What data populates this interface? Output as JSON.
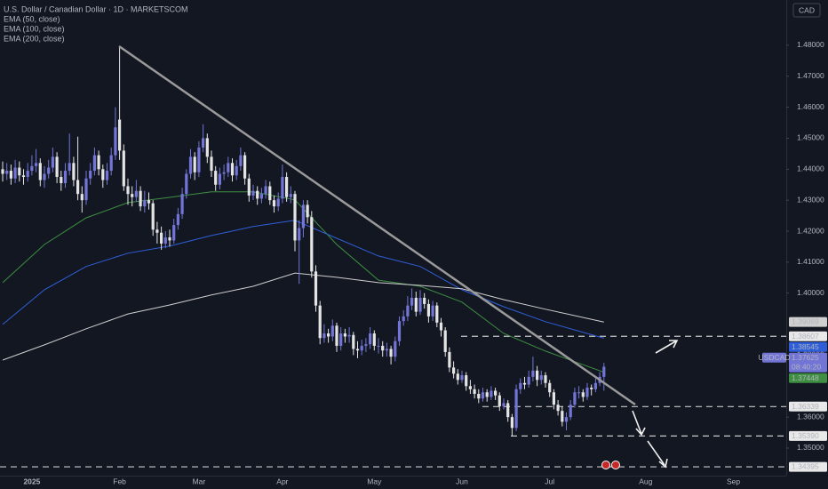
{
  "chart_data": {
    "type": "candlestick",
    "title": "U.S. Dollar / Canadian Dollar · 1D · MARKETSCOM",
    "currency": "CAD",
    "symbol": "USDCAD",
    "countdown": "08:40:20",
    "up_color": "#7275d6",
    "down_color": "#e4e4e4",
    "categories": [
      null,
      null,
      null,
      null,
      null,
      null,
      null,
      "2025",
      null,
      null,
      null,
      null,
      null,
      null,
      null,
      null,
      null,
      null,
      null,
      null,
      null,
      null,
      null,
      null,
      null,
      null,
      null,
      null,
      "Feb",
      null,
      null,
      null,
      null,
      null,
      null,
      null,
      null,
      null,
      null,
      null,
      null,
      null,
      null,
      null,
      null,
      null,
      null,
      "Mar",
      null,
      null,
      null,
      null,
      null,
      null,
      null,
      null,
      null,
      null,
      null,
      null,
      null,
      null,
      null,
      null,
      null,
      null,
      null,
      "Apr",
      null,
      null,
      null,
      null,
      null,
      null,
      null,
      null,
      null,
      null,
      null,
      null,
      null,
      null,
      null,
      null,
      null,
      null,
      null,
      null,
      null,
      "May",
      null,
      null,
      null,
      null,
      null,
      null,
      null,
      null,
      null,
      null,
      null,
      null,
      null,
      null,
      null,
      null,
      null,
      null,
      null,
      null,
      "Jun",
      null,
      null,
      null,
      null,
      null,
      null,
      null,
      null,
      null,
      null,
      null,
      null,
      null,
      null,
      null,
      null,
      null,
      null,
      null,
      null,
      "Jul",
      null,
      null,
      null,
      null,
      null,
      null,
      null,
      null,
      null,
      null,
      null,
      null,
      null,
      null,
      null,
      null,
      null,
      null,
      null,
      null,
      null,
      null,
      "Aug",
      null,
      null,
      null,
      null,
      null,
      null,
      null,
      null,
      null,
      null,
      null,
      null,
      null,
      null,
      null,
      null,
      null,
      null,
      null,
      null,
      "Sep"
    ],
    "ohlc": [
      [
        1.44,
        1.4425,
        1.436,
        1.4385
      ],
      [
        1.4385,
        1.442,
        1.4365,
        1.4395
      ],
      [
        1.4395,
        1.4415,
        1.435,
        1.437
      ],
      [
        1.437,
        1.443,
        1.4355,
        1.4405
      ],
      [
        1.4405,
        1.4425,
        1.436,
        1.438
      ],
      [
        1.438,
        1.44,
        1.435,
        1.4375
      ],
      [
        1.4375,
        1.442,
        1.436,
        1.4395
      ],
      [
        1.4395,
        1.4445,
        1.438,
        1.441
      ],
      [
        1.441,
        1.4465,
        1.439,
        1.442
      ],
      [
        1.442,
        1.4435,
        1.4345,
        1.4365
      ],
      [
        1.4365,
        1.441,
        1.434,
        1.4385
      ],
      [
        1.4385,
        1.443,
        1.437,
        1.4405
      ],
      [
        1.4405,
        1.447,
        1.439,
        1.444
      ],
      [
        1.444,
        1.4455,
        1.4355,
        1.4375
      ],
      [
        1.4375,
        1.4395,
        1.433,
        1.4355
      ],
      [
        1.4355,
        1.442,
        1.434,
        1.4395
      ],
      [
        1.4395,
        1.4515,
        1.438,
        1.442
      ],
      [
        1.442,
        1.444,
        1.4345,
        1.4365
      ],
      [
        1.4365,
        1.4505,
        1.43,
        1.432
      ],
      [
        1.432,
        1.4345,
        1.426,
        1.43
      ],
      [
        1.43,
        1.4395,
        1.4285,
        1.437
      ],
      [
        1.437,
        1.442,
        1.435,
        1.4395
      ],
      [
        1.4395,
        1.447,
        1.438,
        1.4445
      ],
      [
        1.4445,
        1.446,
        1.438,
        1.44
      ],
      [
        1.44,
        1.4415,
        1.434,
        1.4365
      ],
      [
        1.4365,
        1.442,
        1.435,
        1.4395
      ],
      [
        1.4395,
        1.447,
        1.438,
        1.4445
      ],
      [
        1.4445,
        1.46,
        1.443,
        1.4535
      ],
      [
        1.456,
        1.4793,
        1.443,
        1.446
      ],
      [
        1.446,
        1.448,
        1.433,
        1.4345
      ],
      [
        1.4345,
        1.437,
        1.4285,
        1.432
      ],
      [
        1.432,
        1.4345,
        1.428,
        1.431
      ],
      [
        1.431,
        1.4365,
        1.4295,
        1.433
      ],
      [
        1.433,
        1.4345,
        1.4265,
        1.428
      ],
      [
        1.428,
        1.433,
        1.426,
        1.43
      ],
      [
        1.43,
        1.4325,
        1.427,
        1.429
      ],
      [
        1.429,
        1.43,
        1.4185,
        1.4205
      ],
      [
        1.4205,
        1.423,
        1.416,
        1.4195
      ],
      [
        1.4195,
        1.4215,
        1.414,
        1.416
      ],
      [
        1.416,
        1.42,
        1.4145,
        1.418
      ],
      [
        1.418,
        1.4205,
        1.415,
        1.417
      ],
      [
        1.417,
        1.424,
        1.416,
        1.422
      ],
      [
        1.422,
        1.4275,
        1.4205,
        1.4255
      ],
      [
        1.4255,
        1.434,
        1.424,
        1.432
      ],
      [
        1.432,
        1.44,
        1.4305,
        1.4385
      ],
      [
        1.4385,
        1.4465,
        1.437,
        1.444
      ],
      [
        1.444,
        1.4455,
        1.4365,
        1.439
      ],
      [
        1.439,
        1.449,
        1.4375,
        1.447
      ],
      [
        1.447,
        1.4545,
        1.4455,
        1.45
      ],
      [
        1.45,
        1.4515,
        1.442,
        1.444
      ],
      [
        1.444,
        1.446,
        1.4375,
        1.4395
      ],
      [
        1.4395,
        1.441,
        1.433,
        1.435
      ],
      [
        1.435,
        1.4405,
        1.4335,
        1.4385
      ],
      [
        1.4385,
        1.4415,
        1.4365,
        1.439
      ],
      [
        1.439,
        1.444,
        1.4375,
        1.442
      ],
      [
        1.442,
        1.4435,
        1.436,
        1.438
      ],
      [
        1.438,
        1.443,
        1.4365,
        1.441
      ],
      [
        1.441,
        1.447,
        1.4395,
        1.4445
      ],
      [
        1.4445,
        1.4455,
        1.435,
        1.437
      ],
      [
        1.437,
        1.4385,
        1.4295,
        1.4315
      ],
      [
        1.4315,
        1.435,
        1.43,
        1.433
      ],
      [
        1.433,
        1.4345,
        1.4285,
        1.4305
      ],
      [
        1.4305,
        1.434,
        1.429,
        1.432
      ],
      [
        1.432,
        1.4365,
        1.4305,
        1.4345
      ],
      [
        1.4345,
        1.436,
        1.4285,
        1.43
      ],
      [
        1.43,
        1.4315,
        1.426,
        1.428
      ],
      [
        1.428,
        1.4325,
        1.4265,
        1.4305
      ],
      [
        1.4305,
        1.4415,
        1.429,
        1.4375
      ],
      [
        1.4375,
        1.439,
        1.4295,
        1.431
      ],
      [
        1.431,
        1.4345,
        1.429,
        1.432
      ],
      [
        1.432,
        1.433,
        1.4135,
        1.417
      ],
      [
        1.417,
        1.4235,
        1.403,
        1.421
      ],
      [
        1.421,
        1.43,
        1.418,
        1.4285
      ],
      [
        1.4285,
        1.43,
        1.4225,
        1.4245
      ],
      [
        1.4245,
        1.4265,
        1.405,
        1.407
      ],
      [
        1.407,
        1.409,
        1.394,
        1.396
      ],
      [
        1.396,
        1.3975,
        1.3835,
        1.3855
      ],
      [
        1.3855,
        1.39,
        1.384,
        1.387
      ],
      [
        1.387,
        1.3885,
        1.384,
        1.386
      ],
      [
        1.386,
        1.3915,
        1.3845,
        1.3895
      ],
      [
        1.3895,
        1.3905,
        1.381,
        1.383
      ],
      [
        1.383,
        1.389,
        1.3815,
        1.387
      ],
      [
        1.387,
        1.3885,
        1.384,
        1.386
      ],
      [
        1.386,
        1.389,
        1.384,
        1.3865
      ],
      [
        1.3865,
        1.3875,
        1.38,
        1.382
      ],
      [
        1.382,
        1.3845,
        1.379,
        1.3815
      ],
      [
        1.3815,
        1.385,
        1.38,
        1.383
      ],
      [
        1.383,
        1.3855,
        1.381,
        1.3835
      ],
      [
        1.3835,
        1.389,
        1.382,
        1.387
      ],
      [
        1.387,
        1.388,
        1.3815,
        1.383
      ],
      [
        1.383,
        1.3855,
        1.3805,
        1.383
      ],
      [
        1.383,
        1.3845,
        1.3795,
        1.3815
      ],
      [
        1.3815,
        1.384,
        1.3795,
        1.382
      ],
      [
        1.382,
        1.383,
        1.377,
        1.3795
      ],
      [
        1.3795,
        1.386,
        1.378,
        1.3845
      ],
      [
        1.3845,
        1.3925,
        1.383,
        1.391
      ],
      [
        1.391,
        1.3945,
        1.3895,
        1.3925
      ],
      [
        1.3925,
        1.399,
        1.391,
        1.396
      ],
      [
        1.396,
        1.4015,
        1.3945,
        1.3985
      ],
      [
        1.3985,
        1.4005,
        1.3925,
        1.394
      ],
      [
        1.394,
        1.401,
        1.393,
        1.3985
      ],
      [
        1.3985,
        1.4,
        1.395,
        1.3965
      ],
      [
        1.3965,
        1.398,
        1.3905,
        1.3925
      ],
      [
        1.3925,
        1.3975,
        1.391,
        1.396
      ],
      [
        1.396,
        1.397,
        1.389,
        1.3905
      ],
      [
        1.3905,
        1.392,
        1.386,
        1.388
      ],
      [
        1.388,
        1.389,
        1.3795,
        1.381
      ],
      [
        1.381,
        1.3825,
        1.3745,
        1.376
      ],
      [
        1.376,
        1.378,
        1.3725,
        1.374
      ],
      [
        1.374,
        1.3755,
        1.3705,
        1.372
      ],
      [
        1.372,
        1.375,
        1.371,
        1.3735
      ],
      [
        1.3735,
        1.3745,
        1.3685,
        1.37
      ],
      [
        1.37,
        1.372,
        1.3675,
        1.369
      ],
      [
        1.369,
        1.3705,
        1.366,
        1.3675
      ],
      [
        1.3675,
        1.369,
        1.3645,
        1.366
      ],
      [
        1.366,
        1.3695,
        1.365,
        1.368
      ],
      [
        1.368,
        1.369,
        1.365,
        1.3665
      ],
      [
        1.3665,
        1.37,
        1.3655,
        1.3685
      ],
      [
        1.3685,
        1.3695,
        1.3655,
        1.367
      ],
      [
        1.367,
        1.368,
        1.362,
        1.3635
      ],
      [
        1.3635,
        1.366,
        1.3625,
        1.3645
      ],
      [
        1.3645,
        1.3655,
        1.3585,
        1.36
      ],
      [
        1.36,
        1.361,
        1.3539,
        1.3565
      ],
      [
        1.3565,
        1.3705,
        1.3555,
        1.369
      ],
      [
        1.369,
        1.3725,
        1.3675,
        1.371
      ],
      [
        1.371,
        1.373,
        1.369,
        1.3705
      ],
      [
        1.3705,
        1.375,
        1.3695,
        1.373
      ],
      [
        1.373,
        1.3795,
        1.3715,
        1.375
      ],
      [
        1.375,
        1.3765,
        1.37,
        1.372
      ],
      [
        1.372,
        1.375,
        1.3705,
        1.3735
      ],
      [
        1.3735,
        1.3745,
        1.3695,
        1.371
      ],
      [
        1.371,
        1.372,
        1.3665,
        1.368
      ],
      [
        1.368,
        1.369,
        1.3625,
        1.364
      ],
      [
        1.364,
        1.3655,
        1.3605,
        1.362
      ],
      [
        1.362,
        1.3635,
        1.357,
        1.3585
      ],
      [
        1.3585,
        1.3615,
        1.3557,
        1.36
      ],
      [
        1.36,
        1.3655,
        1.359,
        1.364
      ],
      [
        1.364,
        1.3695,
        1.363,
        1.368
      ],
      [
        1.368,
        1.37,
        1.366,
        1.368
      ],
      [
        1.368,
        1.369,
        1.365,
        1.3665
      ],
      [
        1.3665,
        1.371,
        1.3655,
        1.3695
      ],
      [
        1.3695,
        1.3705,
        1.367,
        1.369
      ],
      [
        1.369,
        1.3725,
        1.368,
        1.371
      ],
      [
        1.371,
        1.3745,
        1.37,
        1.373
      ],
      [
        1.373,
        1.3775,
        1.3685,
        1.37625
      ],
      null,
      null,
      null,
      null,
      null,
      null,
      null,
      null,
      null,
      null,
      null,
      null,
      null,
      null,
      null,
      null,
      null,
      null,
      null,
      null,
      null,
      null,
      null,
      null,
      null,
      null,
      null,
      null,
      null,
      null,
      null,
      null
    ],
    "series": [
      {
        "name": "EMA (50, close)",
        "color": "#3f8f43",
        "x": [
          0,
          10,
          20,
          30,
          40,
          50,
          60,
          70,
          80,
          90,
          100,
          110,
          120,
          130,
          144
        ],
        "values": [
          1.4034,
          1.4157,
          1.4243,
          1.4292,
          1.4309,
          1.4327,
          1.4327,
          1.4301,
          1.4157,
          1.4042,
          1.4022,
          1.3971,
          1.387,
          1.3813,
          1.37448
        ]
      },
      {
        "name": "EMA (100, close)",
        "color": "#2f5fd8",
        "x": [
          0,
          10,
          20,
          30,
          40,
          50,
          60,
          70,
          80,
          90,
          100,
          110,
          120,
          130,
          144
        ],
        "values": [
          1.3899,
          1.4011,
          1.4086,
          1.4129,
          1.4152,
          1.4186,
          1.4215,
          1.4235,
          1.4177,
          1.412,
          1.4086,
          1.4011,
          1.3956,
          1.3908,
          1.38545
        ]
      },
      {
        "name": "EMA (200, close)",
        "color": "#cfcfcf",
        "x": [
          0,
          10,
          20,
          30,
          40,
          50,
          60,
          70,
          80,
          90,
          100,
          110,
          120,
          130,
          144
        ],
        "values": [
          1.3784,
          1.3833,
          1.3885,
          1.3933,
          1.3962,
          1.3994,
          1.4022,
          1.4065,
          1.4051,
          1.4034,
          1.4025,
          1.4014,
          1.3979,
          1.3948,
          1.39069
        ]
      }
    ],
    "levels": [
      1.38607,
      1.36339,
      {
        "value": 1.3539,
        "label": "1.35390"
      },
      1.34395
    ],
    "ylim": [
      1.3411,
      1.4946
    ],
    "yticks": [
      {
        "value": 1.48,
        "label": "1.48000"
      },
      {
        "value": 1.47,
        "label": "1.47000"
      },
      {
        "value": 1.46,
        "label": "1.46000"
      },
      {
        "value": 1.45,
        "label": "1.45000"
      },
      {
        "value": 1.44,
        "label": "1.44000"
      },
      {
        "value": 1.43,
        "label": "1.43000"
      },
      {
        "value": 1.42,
        "label": "1.42000"
      },
      {
        "value": 1.41,
        "label": "1.41000"
      },
      {
        "value": 1.4,
        "label": "1.40000"
      },
      {
        "value": 1.38,
        "label": "1.38000"
      },
      {
        "value": 1.36,
        "label": "1.36000"
      },
      {
        "value": 1.35,
        "label": "1.35000"
      }
    ],
    "grid": false
  }
}
